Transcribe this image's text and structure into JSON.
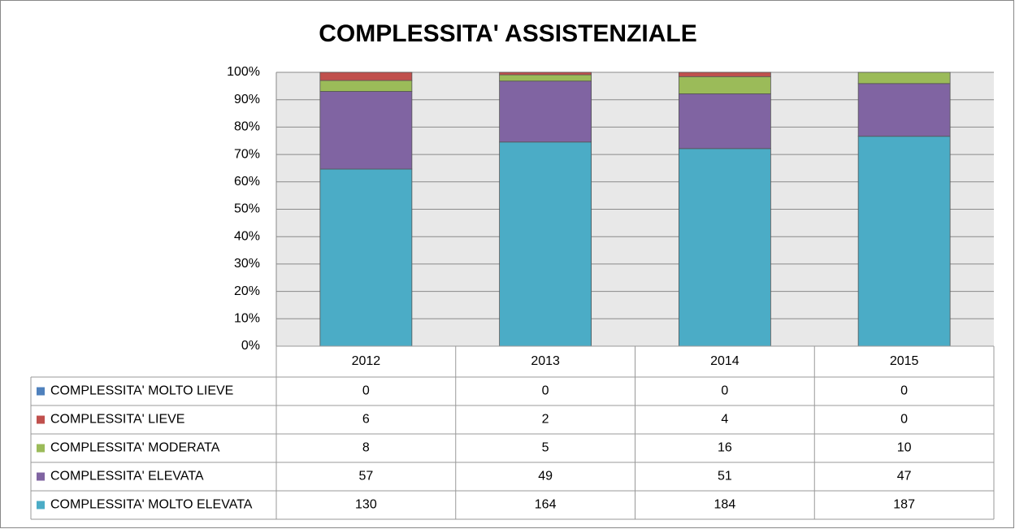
{
  "chart_data": {
    "type": "bar",
    "stacked": "percent",
    "title": "COMPLESSITA' ASSISTENZIALE",
    "categories": [
      "2012",
      "2013",
      "2014",
      "2015"
    ],
    "series": [
      {
        "name": "COMPLESSITA' MOLTO LIEVE",
        "color": "#4f81bd",
        "values": [
          0,
          0,
          0,
          0
        ]
      },
      {
        "name": "COMPLESSITA' LIEVE",
        "color": "#c0504d",
        "values": [
          6,
          2,
          4,
          0
        ]
      },
      {
        "name": "COMPLESSITA' MODERATA",
        "color": "#9bbb59",
        "values": [
          8,
          5,
          16,
          10
        ]
      },
      {
        "name": "COMPLESSITA' ELEVATA",
        "color": "#8064a2",
        "values": [
          57,
          49,
          51,
          47
        ]
      },
      {
        "name": "COMPLESSITA' MOLTO ELEVATA",
        "color": "#4bacc6",
        "values": [
          130,
          164,
          184,
          187
        ]
      }
    ],
    "ylim": [
      0,
      100
    ],
    "yticks": [
      {
        "value": 0,
        "label": "0%"
      },
      {
        "value": 10,
        "label": "10%"
      },
      {
        "value": 20,
        "label": "20%"
      },
      {
        "value": 30,
        "label": "30%"
      },
      {
        "value": 40,
        "label": "40%"
      },
      {
        "value": 50,
        "label": "50%"
      },
      {
        "value": 60,
        "label": "60%"
      },
      {
        "value": 70,
        "label": "70%"
      },
      {
        "value": 80,
        "label": "80%"
      },
      {
        "value": 90,
        "label": "90%"
      },
      {
        "value": 100,
        "label": "100%"
      }
    ],
    "grid": true,
    "data_table": true
  }
}
